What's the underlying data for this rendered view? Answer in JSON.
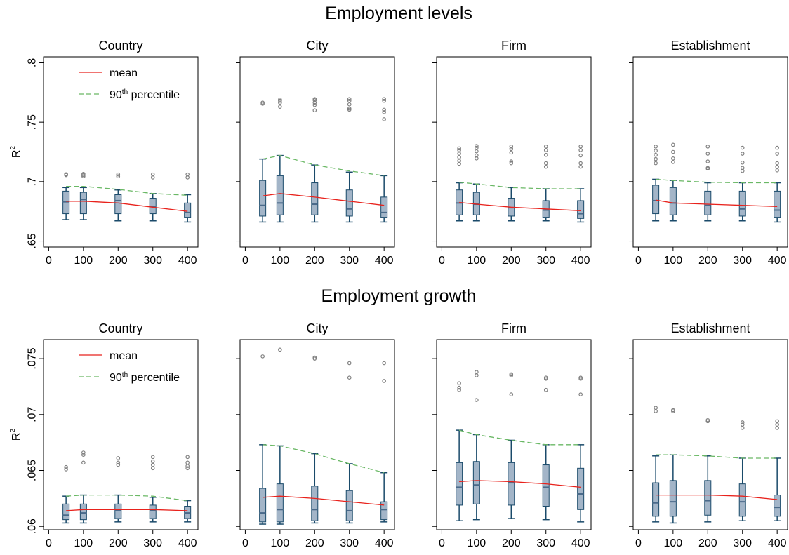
{
  "figure": {
    "rows": [
      {
        "title": "Employment levels"
      },
      {
        "title": "Employment growth"
      }
    ]
  },
  "colors": {
    "mean": "#e8221c",
    "p90": "#6ab865",
    "box_fill": "#a3b5c8",
    "box_edge": "#1a4a6a",
    "median": "#4a6a8a",
    "outlier": "#808080"
  },
  "chart_data": [
    {
      "type": "box",
      "panel": "Employment levels / Country",
      "title": "Country",
      "ylabel": "R",
      "ylabel_sup": "2",
      "ylim": [
        0.645,
        0.805
      ],
      "yticks": [
        0.65,
        0.7,
        0.75,
        0.8
      ],
      "ytick_labels": [
        ".65",
        ".7",
        ".75",
        ".8"
      ],
      "xlim": [
        -15,
        430
      ],
      "xticks": [
        0,
        100,
        200,
        300,
        400
      ],
      "xtick_labels": [
        "0",
        "100",
        "200",
        "300",
        "400"
      ],
      "legend": {
        "position": "top-left",
        "entries": [
          {
            "label": "mean",
            "sup": ""
          },
          {
            "label": "90",
            "sup": "th",
            "rest": " percentile"
          }
        ]
      },
      "x": [
        50,
        100,
        200,
        300,
        400
      ],
      "boxes": [
        {
          "whisker_low": 0.668,
          "q1": 0.673,
          "median": 0.683,
          "q3": 0.692,
          "whisker_high": 0.695,
          "outliers": [
            0.7055,
            0.7062
          ]
        },
        {
          "whisker_low": 0.668,
          "q1": 0.673,
          "median": 0.685,
          "q3": 0.691,
          "whisker_high": 0.695,
          "outliers": [
            0.7045,
            0.7055,
            0.7065
          ]
        },
        {
          "whisker_low": 0.667,
          "q1": 0.673,
          "median": 0.684,
          "q3": 0.689,
          "whisker_high": 0.693,
          "outliers": [
            0.7045,
            0.706
          ]
        },
        {
          "whisker_low": 0.667,
          "q1": 0.673,
          "median": 0.679,
          "q3": 0.686,
          "whisker_high": 0.69,
          "outliers": [
            0.7035,
            0.706
          ]
        },
        {
          "whisker_low": 0.666,
          "q1": 0.67,
          "median": 0.674,
          "q3": 0.682,
          "whisker_high": 0.689,
          "outliers": [
            0.7035,
            0.706
          ]
        }
      ],
      "series": [
        {
          "name": "mean",
          "values": [
            0.6835,
            0.6835,
            0.682,
            0.6785,
            0.675
          ]
        },
        {
          "name": "90th percentile",
          "values": [
            0.696,
            0.696,
            0.6935,
            0.69,
            0.6885
          ]
        }
      ]
    },
    {
      "type": "box",
      "panel": "Employment levels / City",
      "title": "City",
      "ylim": [
        0.645,
        0.805
      ],
      "yticks": [
        0.65,
        0.7,
        0.75,
        0.8
      ],
      "xlim": [
        -15,
        430
      ],
      "xticks": [
        0,
        100,
        200,
        300,
        400
      ],
      "xtick_labels": [
        "0",
        "100",
        "200",
        "300",
        "400"
      ],
      "x": [
        50,
        100,
        200,
        300,
        400
      ],
      "boxes": [
        {
          "whisker_low": 0.666,
          "q1": 0.671,
          "median": 0.68,
          "q3": 0.701,
          "whisker_high": 0.719,
          "outliers": [
            0.7655,
            0.7665
          ]
        },
        {
          "whisker_low": 0.666,
          "q1": 0.672,
          "median": 0.682,
          "q3": 0.705,
          "whisker_high": 0.722,
          "outliers": [
            0.763,
            0.7665,
            0.768,
            0.769
          ]
        },
        {
          "whisker_low": 0.666,
          "q1": 0.672,
          "median": 0.681,
          "q3": 0.699,
          "whisker_high": 0.714,
          "outliers": [
            0.76,
            0.7645,
            0.7665,
            0.7685,
            0.7695
          ]
        },
        {
          "whisker_low": 0.666,
          "q1": 0.671,
          "median": 0.677,
          "q3": 0.693,
          "whisker_high": 0.708,
          "outliers": [
            0.7605,
            0.7615,
            0.765,
            0.768,
            0.7695
          ]
        },
        {
          "whisker_low": 0.666,
          "q1": 0.67,
          "median": 0.674,
          "q3": 0.687,
          "whisker_high": 0.705,
          "outliers": [
            0.7525,
            0.7585,
            0.7605,
            0.768,
            0.7695
          ]
        }
      ],
      "series": [
        {
          "name": "mean",
          "values": [
            0.688,
            0.69,
            0.687,
            0.6835,
            0.68
          ]
        },
        {
          "name": "90th percentile",
          "values": [
            0.719,
            0.722,
            0.714,
            0.709,
            0.705
          ]
        }
      ]
    },
    {
      "type": "box",
      "panel": "Employment levels / Firm",
      "title": "Firm",
      "ylim": [
        0.645,
        0.805
      ],
      "yticks": [
        0.65,
        0.7,
        0.75,
        0.8
      ],
      "xlim": [
        -15,
        430
      ],
      "xticks": [
        0,
        100,
        200,
        300,
        400
      ],
      "xtick_labels": [
        "0",
        "100",
        "200",
        "300",
        "400"
      ],
      "x": [
        50,
        100,
        200,
        300,
        400
      ],
      "boxes": [
        {
          "whisker_low": 0.667,
          "q1": 0.672,
          "median": 0.682,
          "q3": 0.693,
          "whisker_high": 0.699,
          "outliers": [
            0.715,
            0.7175,
            0.7205,
            0.7235,
            0.7265,
            0.728
          ]
        },
        {
          "whisker_low": 0.667,
          "q1": 0.672,
          "median": 0.681,
          "q3": 0.691,
          "whisker_high": 0.698,
          "outliers": [
            0.7195,
            0.722,
            0.7255,
            0.7285,
            0.73
          ]
        },
        {
          "whisker_low": 0.667,
          "q1": 0.671,
          "median": 0.678,
          "q3": 0.686,
          "whisker_high": 0.695,
          "outliers": [
            0.7155,
            0.717,
            0.7245,
            0.7275,
            0.7295
          ]
        },
        {
          "whisker_low": 0.667,
          "q1": 0.67,
          "median": 0.676,
          "q3": 0.684,
          "whisker_high": 0.694,
          "outliers": [
            0.7125,
            0.7155,
            0.7225,
            0.7265,
            0.7295
          ]
        },
        {
          "whisker_low": 0.666,
          "q1": 0.669,
          "median": 0.673,
          "q3": 0.684,
          "whisker_high": 0.694,
          "outliers": [
            0.7125,
            0.7155,
            0.722,
            0.7265,
            0.7295
          ]
        }
      ],
      "series": [
        {
          "name": "mean",
          "values": [
            0.6825,
            0.681,
            0.6785,
            0.677,
            0.6755
          ]
        },
        {
          "name": "90th percentile",
          "values": [
            0.6995,
            0.698,
            0.695,
            0.694,
            0.694
          ]
        }
      ]
    },
    {
      "type": "box",
      "panel": "Employment levels / Establishment",
      "title": "Establishment",
      "ylim": [
        0.645,
        0.805
      ],
      "yticks": [
        0.65,
        0.7,
        0.75,
        0.8
      ],
      "xlim": [
        -15,
        430
      ],
      "xticks": [
        0,
        100,
        200,
        300,
        400
      ],
      "xtick_labels": [
        "0",
        "100",
        "200",
        "300",
        "400"
      ],
      "x": [
        50,
        100,
        200,
        300,
        400
      ],
      "boxes": [
        {
          "whisker_low": 0.667,
          "q1": 0.673,
          "median": 0.684,
          "q3": 0.697,
          "whisker_high": 0.702,
          "outliers": [
            0.7155,
            0.719,
            0.7225,
            0.726,
            0.7295
          ]
        },
        {
          "whisker_low": 0.667,
          "q1": 0.672,
          "median": 0.682,
          "q3": 0.695,
          "whisker_high": 0.701,
          "outliers": [
            0.7165,
            0.7195,
            0.725,
            0.731
          ]
        },
        {
          "whisker_low": 0.667,
          "q1": 0.672,
          "median": 0.68,
          "q3": 0.692,
          "whisker_high": 0.699,
          "outliers": [
            0.711,
            0.7115,
            0.717,
            0.7235,
            0.7295
          ]
        },
        {
          "whisker_low": 0.667,
          "q1": 0.671,
          "median": 0.677,
          "q3": 0.692,
          "whisker_high": 0.699,
          "outliers": [
            0.709,
            0.7115,
            0.716,
            0.7235,
            0.7285
          ]
        },
        {
          "whisker_low": 0.666,
          "q1": 0.67,
          "median": 0.676,
          "q3": 0.692,
          "whisker_high": 0.699,
          "outliers": [
            0.7095,
            0.7125,
            0.7155,
            0.7235,
            0.7285
          ]
        }
      ],
      "series": [
        {
          "name": "mean",
          "values": [
            0.6845,
            0.682,
            0.681,
            0.68,
            0.679
          ]
        },
        {
          "name": "90th percentile",
          "values": [
            0.702,
            0.701,
            0.6995,
            0.699,
            0.699
          ]
        }
      ]
    },
    {
      "type": "box",
      "panel": "Employment growth / Country",
      "title": "Country",
      "ylabel": "R",
      "ylabel_sup": "2",
      "ylim": [
        0.0597,
        0.0767
      ],
      "yticks": [
        0.06,
        0.065,
        0.07,
        0.075
      ],
      "ytick_labels": [
        ".06",
        ".065",
        ".07",
        ".075"
      ],
      "xlim": [
        -15,
        430
      ],
      "xticks": [
        0,
        100,
        200,
        300,
        400
      ],
      "xtick_labels": [
        "0",
        "100",
        "200",
        "300",
        "400"
      ],
      "legend": {
        "position": "top-left",
        "entries": [
          {
            "label": "mean",
            "sup": ""
          },
          {
            "label": "90",
            "sup": "th",
            "rest": " percentile"
          }
        ]
      },
      "x": [
        50,
        100,
        200,
        300,
        400
      ],
      "boxes": [
        {
          "whisker_low": 0.0603,
          "q1": 0.0606,
          "median": 0.061,
          "q3": 0.062,
          "whisker_high": 0.0627,
          "outliers": [
            0.0651,
            0.0653
          ]
        },
        {
          "whisker_low": 0.0603,
          "q1": 0.0606,
          "median": 0.0612,
          "q3": 0.062,
          "whisker_high": 0.0628,
          "outliers": [
            0.0657,
            0.0664,
            0.0666
          ]
        },
        {
          "whisker_low": 0.0604,
          "q1": 0.0607,
          "median": 0.0614,
          "q3": 0.062,
          "whisker_high": 0.0628,
          "outliers": [
            0.0655,
            0.0657,
            0.0661
          ]
        },
        {
          "whisker_low": 0.0604,
          "q1": 0.0607,
          "median": 0.0614,
          "q3": 0.0619,
          "whisker_high": 0.0626,
          "outliers": [
            0.0652,
            0.0655,
            0.0658,
            0.0662
          ]
        },
        {
          "whisker_low": 0.0604,
          "q1": 0.0607,
          "median": 0.0612,
          "q3": 0.0618,
          "whisker_high": 0.0623,
          "outliers": [
            0.0652,
            0.0654,
            0.0657,
            0.0662
          ]
        }
      ],
      "series": [
        {
          "name": "mean",
          "values": [
            0.0614,
            0.0615,
            0.0615,
            0.0615,
            0.0614
          ]
        },
        {
          "name": "90th percentile",
          "values": [
            0.0627,
            0.0628,
            0.0628,
            0.0627,
            0.0623
          ]
        }
      ]
    },
    {
      "type": "box",
      "panel": "Employment growth / City",
      "title": "City",
      "ylim": [
        0.0597,
        0.0767
      ],
      "yticks": [
        0.06,
        0.065,
        0.07,
        0.075
      ],
      "xlim": [
        -15,
        430
      ],
      "xticks": [
        0,
        100,
        200,
        300,
        400
      ],
      "xtick_labels": [
        "0",
        "100",
        "200",
        "300",
        "400"
      ],
      "x": [
        50,
        100,
        200,
        300,
        400
      ],
      "boxes": [
        {
          "whisker_low": 0.0602,
          "q1": 0.0604,
          "median": 0.0612,
          "q3": 0.0634,
          "whisker_high": 0.0673,
          "outliers": [
            0.0752
          ]
        },
        {
          "whisker_low": 0.0602,
          "q1": 0.0604,
          "median": 0.0615,
          "q3": 0.0638,
          "whisker_high": 0.0672,
          "outliers": [
            0.0758
          ]
        },
        {
          "whisker_low": 0.0603,
          "q1": 0.0605,
          "median": 0.0615,
          "q3": 0.0636,
          "whisker_high": 0.0665,
          "outliers": [
            0.075,
            0.0751
          ]
        },
        {
          "whisker_low": 0.0603,
          "q1": 0.0605,
          "median": 0.0614,
          "q3": 0.0632,
          "whisker_high": 0.0656,
          "outliers": [
            0.0733,
            0.0746
          ]
        },
        {
          "whisker_low": 0.0604,
          "q1": 0.0606,
          "median": 0.0615,
          "q3": 0.0622,
          "whisker_high": 0.0648,
          "outliers": [
            0.073,
            0.0746
          ]
        }
      ],
      "series": [
        {
          "name": "mean",
          "values": [
            0.0626,
            0.0627,
            0.0625,
            0.0622,
            0.0619
          ]
        },
        {
          "name": "90th percentile",
          "values": [
            0.0673,
            0.0672,
            0.0665,
            0.0656,
            0.0648
          ]
        }
      ]
    },
    {
      "type": "box",
      "panel": "Employment growth / Firm",
      "title": "Firm",
      "ylim": [
        0.0597,
        0.0767
      ],
      "yticks": [
        0.06,
        0.065,
        0.07,
        0.075
      ],
      "xlim": [
        -15,
        430
      ],
      "xticks": [
        0,
        100,
        200,
        300,
        400
      ],
      "xtick_labels": [
        "0",
        "100",
        "200",
        "300",
        "400"
      ],
      "x": [
        50,
        100,
        200,
        300,
        400
      ],
      "boxes": [
        {
          "whisker_low": 0.0605,
          "q1": 0.0619,
          "median": 0.0635,
          "q3": 0.0657,
          "whisker_high": 0.0686,
          "outliers": [
            0.0722,
            0.0724,
            0.0728
          ]
        },
        {
          "whisker_low": 0.0606,
          "q1": 0.062,
          "median": 0.0637,
          "q3": 0.0658,
          "whisker_high": 0.0682,
          "outliers": [
            0.0713,
            0.0735,
            0.0738
          ]
        },
        {
          "whisker_low": 0.0607,
          "q1": 0.0619,
          "median": 0.0639,
          "q3": 0.0657,
          "whisker_high": 0.0677,
          "outliers": [
            0.0718,
            0.0735,
            0.0736
          ]
        },
        {
          "whisker_low": 0.0606,
          "q1": 0.0618,
          "median": 0.0635,
          "q3": 0.0655,
          "whisker_high": 0.0673,
          "outliers": [
            0.0722,
            0.0732,
            0.0733
          ]
        },
        {
          "whisker_low": 0.0604,
          "q1": 0.0615,
          "median": 0.0629,
          "q3": 0.0652,
          "whisker_high": 0.0673,
          "outliers": [
            0.0718,
            0.0732,
            0.0733
          ]
        }
      ],
      "series": [
        {
          "name": "mean",
          "values": [
            0.064,
            0.0641,
            0.064,
            0.0638,
            0.0635
          ]
        },
        {
          "name": "90th percentile",
          "values": [
            0.0686,
            0.0682,
            0.0677,
            0.0673,
            0.0673
          ]
        }
      ]
    },
    {
      "type": "box",
      "panel": "Employment growth / Establishment",
      "title": "Establishment",
      "ylim": [
        0.0597,
        0.0767
      ],
      "yticks": [
        0.06,
        0.065,
        0.07,
        0.075
      ],
      "xlim": [
        -15,
        430
      ],
      "xticks": [
        0,
        100,
        200,
        300,
        400
      ],
      "xtick_labels": [
        "0",
        "100",
        "200",
        "300",
        "400"
      ],
      "x": [
        50,
        100,
        200,
        300,
        400
      ],
      "boxes": [
        {
          "whisker_low": 0.0604,
          "q1": 0.0609,
          "median": 0.0621,
          "q3": 0.0639,
          "whisker_high": 0.0663,
          "outliers": [
            0.0703,
            0.0706
          ]
        },
        {
          "whisker_low": 0.0603,
          "q1": 0.0609,
          "median": 0.0622,
          "q3": 0.0641,
          "whisker_high": 0.0664,
          "outliers": [
            0.0703,
            0.0704
          ]
        },
        {
          "whisker_low": 0.0604,
          "q1": 0.061,
          "median": 0.0623,
          "q3": 0.0641,
          "whisker_high": 0.0663,
          "outliers": [
            0.0694,
            0.0695
          ]
        },
        {
          "whisker_low": 0.0605,
          "q1": 0.0609,
          "median": 0.0622,
          "q3": 0.0638,
          "whisker_high": 0.0661,
          "outliers": [
            0.0688,
            0.0691,
            0.0693
          ]
        },
        {
          "whisker_low": 0.0605,
          "q1": 0.0609,
          "median": 0.0617,
          "q3": 0.0628,
          "whisker_high": 0.0661,
          "outliers": [
            0.0688,
            0.0691,
            0.0694
          ]
        }
      ],
      "series": [
        {
          "name": "mean",
          "values": [
            0.0628,
            0.0628,
            0.0628,
            0.0627,
            0.0624
          ]
        },
        {
          "name": "90th percentile",
          "values": [
            0.0664,
            0.0664,
            0.0663,
            0.0661,
            0.0661
          ]
        }
      ]
    }
  ]
}
